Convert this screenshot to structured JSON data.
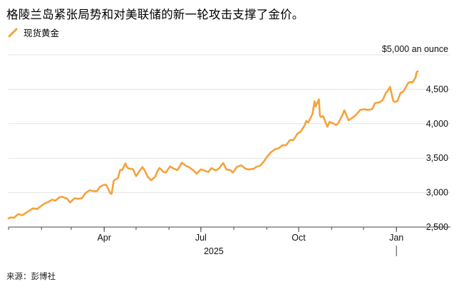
{
  "title": "格陵兰岛紧张局势和对美联储的新一轮攻击支撑了金价。",
  "legend": {
    "label": "现货黄金",
    "color": "#f5a23a"
  },
  "source": "来源：彭博社",
  "colors": {
    "line": "#f5a23a",
    "grid": "#e3e3e3",
    "axis": "#444444"
  },
  "chart_data": {
    "type": "line",
    "title": "格陵兰岛紧张局势和对美联储的新一轮攻击支撑了金价。",
    "y_unit_label": "$5,000 an ounce",
    "yticks": [
      2500,
      3000,
      3500,
      4000,
      4500
    ],
    "ytick_labels": [
      "2,500",
      "3,000",
      "3,500",
      "4,000",
      "4,500"
    ],
    "ylim": [
      2500,
      5000
    ],
    "xlim": [
      "2025-01-01",
      "2026-01-21"
    ],
    "xticks": [
      {
        "label": "Apr",
        "date": "2025-04-01"
      },
      {
        "label": "Jul",
        "date": "2025-07-01"
      },
      {
        "label": "Oct",
        "date": "2025-10-01"
      },
      {
        "label": "Jan",
        "date": "2026-01-01"
      }
    ],
    "year_label": "2025",
    "grid": true,
    "legend_position": "top-left",
    "series": [
      {
        "name": "现货黄金",
        "points": [
          [
            "2025-01-01",
            2625
          ],
          [
            "2025-01-03",
            2640
          ],
          [
            "2025-01-06",
            2635
          ],
          [
            "2025-01-08",
            2660
          ],
          [
            "2025-01-10",
            2688
          ],
          [
            "2025-01-14",
            2672
          ],
          [
            "2025-01-17",
            2702
          ],
          [
            "2025-01-21",
            2742
          ],
          [
            "2025-01-24",
            2772
          ],
          [
            "2025-01-28",
            2762
          ],
          [
            "2025-01-31",
            2800
          ],
          [
            "2025-02-04",
            2842
          ],
          [
            "2025-02-07",
            2862
          ],
          [
            "2025-02-11",
            2898
          ],
          [
            "2025-02-14",
            2882
          ],
          [
            "2025-02-18",
            2935
          ],
          [
            "2025-02-21",
            2938
          ],
          [
            "2025-02-25",
            2912
          ],
          [
            "2025-02-28",
            2858
          ],
          [
            "2025-03-04",
            2918
          ],
          [
            "2025-03-07",
            2910
          ],
          [
            "2025-03-11",
            2918
          ],
          [
            "2025-03-14",
            2985
          ],
          [
            "2025-03-18",
            3033
          ],
          [
            "2025-03-21",
            3024
          ],
          [
            "2025-03-25",
            3020
          ],
          [
            "2025-03-28",
            3085
          ],
          [
            "2025-04-01",
            3114
          ],
          [
            "2025-04-03",
            3110
          ],
          [
            "2025-04-07",
            2985
          ],
          [
            "2025-04-08",
            2982
          ],
          [
            "2025-04-10",
            3175
          ],
          [
            "2025-04-14",
            3212
          ],
          [
            "2025-04-16",
            3330
          ],
          [
            "2025-04-18",
            3328
          ],
          [
            "2025-04-21",
            3424
          ],
          [
            "2025-04-22",
            3380
          ],
          [
            "2025-04-24",
            3348
          ],
          [
            "2025-04-28",
            3342
          ],
          [
            "2025-05-01",
            3240
          ],
          [
            "2025-05-05",
            3330
          ],
          [
            "2025-05-07",
            3370
          ],
          [
            "2025-05-09",
            3325
          ],
          [
            "2025-05-12",
            3230
          ],
          [
            "2025-05-15",
            3180
          ],
          [
            "2025-05-19",
            3230
          ],
          [
            "2025-05-21",
            3310
          ],
          [
            "2025-05-23",
            3358
          ],
          [
            "2025-05-27",
            3300
          ],
          [
            "2025-05-29",
            3290
          ],
          [
            "2025-06-02",
            3380
          ],
          [
            "2025-06-05",
            3352
          ],
          [
            "2025-06-09",
            3326
          ],
          [
            "2025-06-13",
            3433
          ],
          [
            "2025-06-17",
            3388
          ],
          [
            "2025-06-20",
            3368
          ],
          [
            "2025-06-24",
            3322
          ],
          [
            "2025-06-27",
            3274
          ],
          [
            "2025-07-01",
            3338
          ],
          [
            "2025-07-03",
            3326
          ],
          [
            "2025-07-08",
            3300
          ],
          [
            "2025-07-11",
            3355
          ],
          [
            "2025-07-15",
            3323
          ],
          [
            "2025-07-18",
            3350
          ],
          [
            "2025-07-22",
            3430
          ],
          [
            "2025-07-25",
            3336
          ],
          [
            "2025-07-29",
            3326
          ],
          [
            "2025-07-31",
            3290
          ],
          [
            "2025-08-04",
            3375
          ],
          [
            "2025-08-08",
            3397
          ],
          [
            "2025-08-12",
            3347
          ],
          [
            "2025-08-15",
            3336
          ],
          [
            "2025-08-20",
            3348
          ],
          [
            "2025-08-22",
            3372
          ],
          [
            "2025-08-26",
            3393
          ],
          [
            "2025-08-29",
            3448
          ],
          [
            "2025-09-02",
            3533
          ],
          [
            "2025-09-05",
            3587
          ],
          [
            "2025-09-09",
            3632
          ],
          [
            "2025-09-12",
            3643
          ],
          [
            "2025-09-16",
            3690
          ],
          [
            "2025-09-19",
            3685
          ],
          [
            "2025-09-23",
            3765
          ],
          [
            "2025-09-26",
            3760
          ],
          [
            "2025-09-30",
            3858
          ],
          [
            "2025-10-03",
            3886
          ],
          [
            "2025-10-07",
            3985
          ],
          [
            "2025-10-08",
            4040
          ],
          [
            "2025-10-10",
            4018
          ],
          [
            "2025-10-14",
            4142
          ],
          [
            "2025-10-16",
            4326
          ],
          [
            "2025-10-17",
            4250
          ],
          [
            "2025-10-20",
            4356
          ],
          [
            "2025-10-21",
            4120
          ],
          [
            "2025-10-22",
            4095
          ],
          [
            "2025-10-24",
            4112
          ],
          [
            "2025-10-28",
            3955
          ],
          [
            "2025-10-30",
            4025
          ],
          [
            "2025-11-03",
            4002
          ],
          [
            "2025-11-05",
            3980
          ],
          [
            "2025-11-07",
            4000
          ],
          [
            "2025-11-11",
            4120
          ],
          [
            "2025-11-13",
            4195
          ],
          [
            "2025-11-17",
            4050
          ],
          [
            "2025-11-20",
            4080
          ],
          [
            "2025-11-24",
            4130
          ],
          [
            "2025-11-28",
            4200
          ],
          [
            "2025-12-02",
            4210
          ],
          [
            "2025-12-05",
            4200
          ],
          [
            "2025-12-09",
            4210
          ],
          [
            "2025-12-12",
            4300
          ],
          [
            "2025-12-16",
            4310
          ],
          [
            "2025-12-19",
            4340
          ],
          [
            "2025-12-22",
            4445
          ],
          [
            "2025-12-24",
            4480
          ],
          [
            "2025-12-26",
            4535
          ],
          [
            "2025-12-29",
            4330
          ],
          [
            "2025-12-31",
            4315
          ],
          [
            "2026-01-02",
            4330
          ],
          [
            "2026-01-05",
            4450
          ],
          [
            "2026-01-07",
            4460
          ],
          [
            "2026-01-09",
            4505
          ],
          [
            "2026-01-12",
            4590
          ],
          [
            "2026-01-13",
            4600
          ],
          [
            "2026-01-15",
            4605
          ],
          [
            "2026-01-16",
            4595
          ],
          [
            "2026-01-19",
            4670
          ],
          [
            "2026-01-20",
            4750
          ],
          [
            "2026-01-21",
            4760
          ]
        ]
      }
    ]
  }
}
